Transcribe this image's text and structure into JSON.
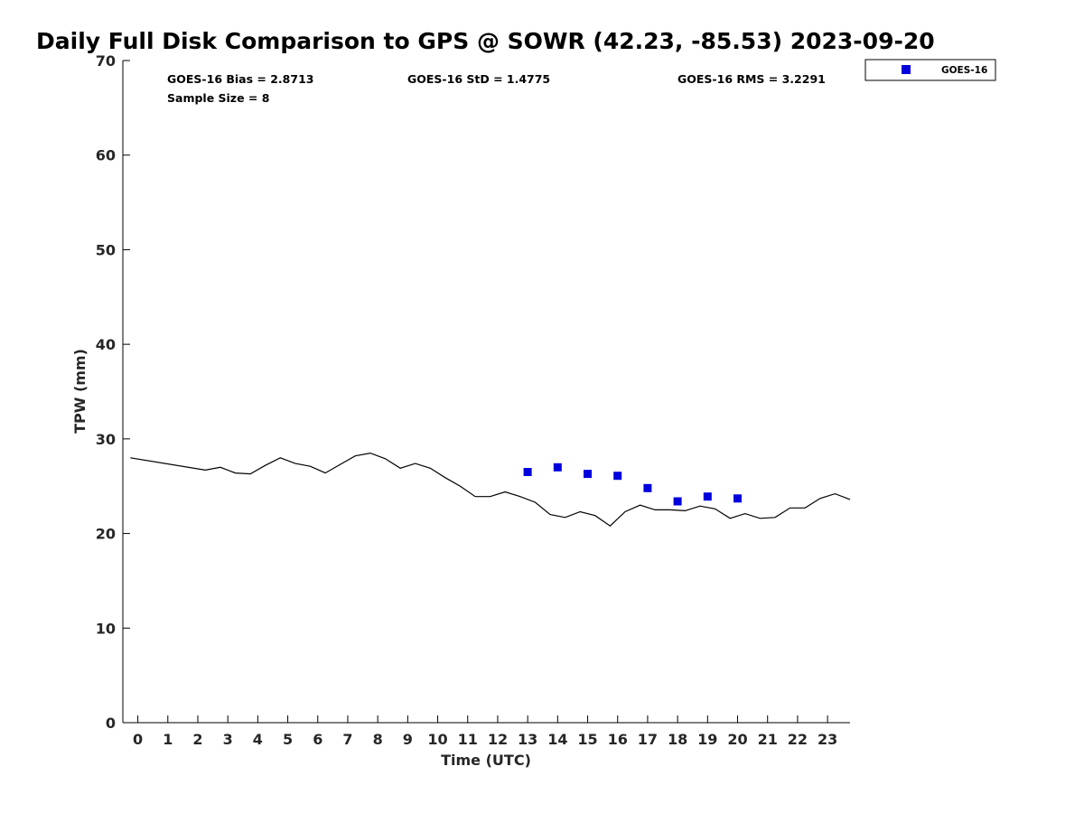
{
  "chart_data": {
    "type": "line",
    "title": "Daily Full Disk Comparison to GPS @ SOWR (42.23, -85.53) 2023-09-20",
    "xlabel": "Time (UTC)",
    "ylabel": "TPW (mm)",
    "xlim": [
      -0.5,
      23.75
    ],
    "ylim": [
      0,
      70
    ],
    "x_ticks": [
      0,
      1,
      2,
      3,
      4,
      5,
      6,
      7,
      8,
      9,
      10,
      11,
      12,
      13,
      14,
      15,
      16,
      17,
      18,
      19,
      20,
      21,
      22,
      23
    ],
    "y_ticks": [
      0,
      10,
      20,
      30,
      40,
      50,
      60,
      70
    ],
    "grid": false,
    "legend_position": "top-right",
    "stats": {
      "bias": "GOES-16 Bias = 2.8713",
      "std": "GOES-16 StD = 1.4775",
      "rms": "GOES-16 RMS = 3.2291",
      "sample_size": "Sample Size = 8"
    },
    "series": [
      {
        "kind": "line",
        "color": "#000000",
        "x": [
          -0.25,
          2.25,
          2.75,
          3.25,
          3.75,
          4.25,
          4.75,
          5.25,
          5.75,
          6.25,
          6.75,
          7.25,
          7.75,
          8.25,
          8.75,
          9.25,
          9.75,
          10.25,
          10.75,
          11.25,
          11.75,
          12.25,
          12.75,
          13.25,
          13.75,
          14.25,
          14.75,
          15.25,
          15.75,
          16.25,
          16.75,
          17.25,
          17.75,
          18.25,
          18.75,
          19.25,
          19.75,
          20.25,
          20.75,
          21.25,
          21.75,
          22.25,
          22.75,
          23.25,
          23.75
        ],
        "y": [
          28.0,
          26.7,
          27.0,
          26.4,
          26.3,
          27.2,
          28.0,
          27.4,
          27.1,
          26.4,
          27.3,
          28.2,
          28.5,
          27.9,
          26.9,
          27.4,
          26.9,
          25.9,
          25.0,
          23.9,
          23.9,
          24.4,
          23.9,
          23.3,
          22.0,
          21.7,
          22.3,
          21.9,
          20.8,
          22.3,
          23.0,
          22.5,
          22.5,
          22.4,
          22.9,
          22.6,
          21.6,
          22.1,
          21.6,
          21.7,
          22.7,
          22.7,
          23.7,
          24.2,
          23.6
        ]
      },
      {
        "kind": "scatter",
        "name": "GOES-16",
        "color": "#0000dd",
        "x": [
          13,
          14,
          15,
          16,
          17,
          18,
          19,
          20
        ],
        "y": [
          26.5,
          27.0,
          26.3,
          26.1,
          24.8,
          23.4,
          23.9,
          23.7
        ]
      }
    ]
  }
}
